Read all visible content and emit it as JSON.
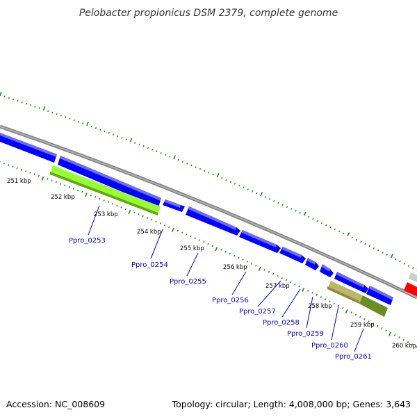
{
  "title": "Pelobacter propionicus DSM 2379, complete genome",
  "footer": {
    "accession": "Accession: NC_008609",
    "summary": "Topology: circular; Length: 4,008,000 bp; Genes: 3,643"
  },
  "colors": {
    "background": "#ffffff",
    "backbone": "#808080",
    "tick": "#1a8a1a",
    "gene_label": "#0000cc",
    "gene_blue": "#0000ff",
    "gene_lime": "#99ff33",
    "gene_khaki": "#bdb76b",
    "gene_olive": "#6b8e23",
    "gene_red": "#ff0000",
    "gene_gray": "#cccccc"
  },
  "tick_labels": [
    "251 kbp",
    "252 kbp",
    "253 kbp",
    "254 kbp",
    "255 kbp",
    "256 kbp",
    "257 kbp",
    "258 kbp",
    "259 kbp",
    "260 kbp"
  ],
  "gene_labels": [
    "Ppro_0253",
    "Ppro_0254",
    "Ppro_0255",
    "Ppro_0256",
    "Ppro_0257",
    "Ppro_0258",
    "Ppro_0259",
    "Ppro_0260",
    "Ppro_0261"
  ]
}
